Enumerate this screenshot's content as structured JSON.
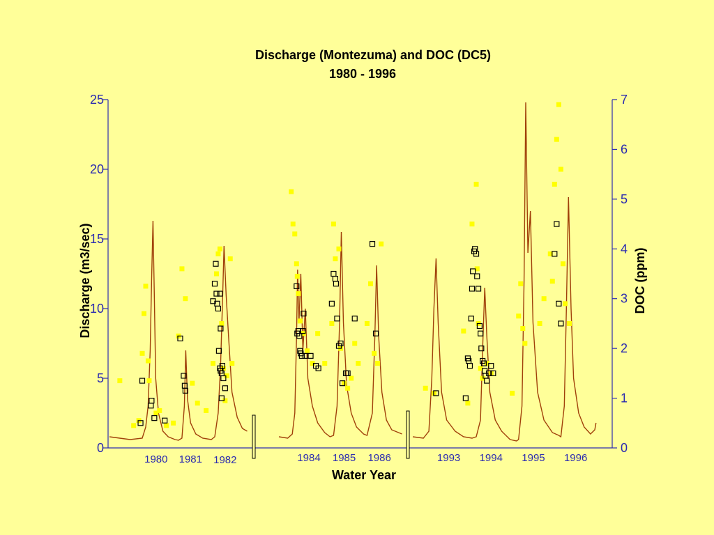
{
  "colors": {
    "background": "#ffff99",
    "axis": "#2b2bb0",
    "discharge_line": "#a0400a",
    "doc_marker_fill": "#ffff00",
    "doc_marker_box": "#000000"
  },
  "chart_data": {
    "type": "line",
    "title": "Discharge (Montezuma) and DOC (DC5)",
    "subtitle": "1980 - 1996",
    "xlabel": "Water Year",
    "ylabel": "Discharge (m3/sec)",
    "y2label": "DOC (ppm)",
    "ylim": [
      0,
      25
    ],
    "y2lim": [
      0,
      7
    ],
    "yticks": [
      "0",
      "5",
      "10",
      "15",
      "20",
      "25"
    ],
    "y2ticks": [
      "0",
      "1",
      "2",
      "3",
      "4",
      "5",
      "6",
      "7"
    ],
    "grid": false,
    "legend": "none",
    "axis_breaks": [
      "after 1982",
      "after 1986"
    ],
    "years": [
      {
        "label": "1980",
        "peak": 16.3
      },
      {
        "label": "1981",
        "peak": 7.0
      },
      {
        "label": "1982",
        "peak": 14.5
      },
      {
        "label": "1984",
        "peak": 12.8
      },
      {
        "label": "1985",
        "peak": 15.5
      },
      {
        "label": "1986",
        "peak": 13.1
      },
      {
        "label": "1993",
        "peak": 13.6
      },
      {
        "label": "1994",
        "peak": 11.5
      },
      {
        "label": "1995",
        "peak": 24.8
      },
      {
        "label": "1996",
        "peak": 18.0
      }
    ],
    "series": [
      {
        "name": "",
        "kind": "discharge line (m3/sec)",
        "points": [
          [
            1979.0,
            0.8
          ],
          [
            1979.3,
            0.7
          ],
          [
            1979.6,
            0.6
          ],
          [
            1979.95,
            0.7
          ],
          [
            1980.05,
            1.5
          ],
          [
            1980.12,
            3
          ],
          [
            1980.18,
            7
          ],
          [
            1980.22,
            12
          ],
          [
            1980.26,
            16.3
          ],
          [
            1980.3,
            11
          ],
          [
            1980.34,
            5
          ],
          [
            1980.42,
            2.5
          ],
          [
            1980.55,
            1.2
          ],
          [
            1980.7,
            0.8
          ],
          [
            1980.9,
            0.6
          ],
          [
            1981.0,
            0.55
          ],
          [
            1981.1,
            0.7
          ],
          [
            1981.17,
            3
          ],
          [
            1981.21,
            7.0
          ],
          [
            1981.26,
            3.5
          ],
          [
            1981.35,
            1.8
          ],
          [
            1981.5,
            1.0
          ],
          [
            1981.7,
            0.7
          ],
          [
            1981.95,
            0.6
          ],
          [
            1982.05,
            0.8
          ],
          [
            1982.15,
            2.5
          ],
          [
            1982.22,
            6
          ],
          [
            1982.28,
            11
          ],
          [
            1982.32,
            14.5
          ],
          [
            1982.38,
            11
          ],
          [
            1982.45,
            8
          ],
          [
            1982.55,
            4
          ],
          [
            1982.7,
            2.2
          ],
          [
            1982.85,
            1.4
          ],
          [
            1982.99,
            1.2
          ],
          [
            1983.5,
            0.8
          ],
          [
            1983.75,
            0.7
          ],
          [
            1983.88,
            1.0
          ],
          [
            1983.95,
            2.5
          ],
          [
            1984.0,
            8
          ],
          [
            1984.03,
            12.8
          ],
          [
            1984.07,
            9
          ],
          [
            1984.12,
            12.5
          ],
          [
            1984.18,
            7
          ],
          [
            1984.25,
            10
          ],
          [
            1984.32,
            5
          ],
          [
            1984.45,
            3
          ],
          [
            1984.6,
            1.8
          ],
          [
            1984.8,
            1.1
          ],
          [
            1984.95,
            0.8
          ],
          [
            1985.05,
            0.9
          ],
          [
            1985.15,
            3
          ],
          [
            1985.22,
            9
          ],
          [
            1985.27,
            15.5
          ],
          [
            1985.33,
            9
          ],
          [
            1985.42,
            4.5
          ],
          [
            1985.55,
            2.5
          ],
          [
            1985.7,
            1.5
          ],
          [
            1985.9,
            1.0
          ],
          [
            1986.0,
            0.9
          ],
          [
            1986.15,
            2.5
          ],
          [
            1986.22,
            8
          ],
          [
            1986.27,
            13.1
          ],
          [
            1986.33,
            8
          ],
          [
            1986.42,
            4
          ],
          [
            1986.55,
            2
          ],
          [
            1986.7,
            1.3
          ],
          [
            1986.99,
            1.0
          ],
          [
            1992.5,
            0.8
          ],
          [
            1992.75,
            0.7
          ],
          [
            1992.88,
            1.2
          ],
          [
            1992.95,
            5
          ],
          [
            1993.0,
            10
          ],
          [
            1993.05,
            13.6
          ],
          [
            1993.1,
            9
          ],
          [
            1993.18,
            4
          ],
          [
            1993.3,
            2
          ],
          [
            1993.5,
            1.2
          ],
          [
            1993.7,
            0.8
          ],
          [
            1993.9,
            0.7
          ],
          [
            1994.0,
            0.8
          ],
          [
            1994.1,
            2
          ],
          [
            1994.15,
            7
          ],
          [
            1994.2,
            11.5
          ],
          [
            1994.25,
            8
          ],
          [
            1994.32,
            4
          ],
          [
            1994.45,
            2
          ],
          [
            1994.6,
            1.2
          ],
          [
            1994.8,
            0.6
          ],
          [
            1994.95,
            0.5
          ],
          [
            1995.0,
            0.6
          ],
          [
            1995.08,
            3
          ],
          [
            1995.13,
            12
          ],
          [
            1995.17,
            24.8
          ],
          [
            1995.22,
            14
          ],
          [
            1995.28,
            17
          ],
          [
            1995.34,
            9
          ],
          [
            1995.45,
            4
          ],
          [
            1995.6,
            2
          ],
          [
            1995.8,
            1.1
          ],
          [
            1995.95,
            0.9
          ],
          [
            1996.0,
            0.8
          ],
          [
            1996.08,
            3
          ],
          [
            1996.13,
            10
          ],
          [
            1996.18,
            18.0
          ],
          [
            1996.24,
            10
          ],
          [
            1996.3,
            5
          ],
          [
            1996.42,
            2.5
          ],
          [
            1996.55,
            1.5
          ],
          [
            1996.7,
            1.0
          ],
          [
            1996.8,
            1.3
          ],
          [
            1996.83,
            1.8
          ]
        ]
      },
      {
        "name": "",
        "kind": "DOC yellow markers (ppm)",
        "points": [
          [
            1979.3,
            1.35
          ],
          [
            1979.7,
            0.45
          ],
          [
            1979.85,
            0.55
          ],
          [
            1979.95,
            1.9
          ],
          [
            1980.0,
            2.7
          ],
          [
            1980.05,
            3.25
          ],
          [
            1980.12,
            1.75
          ],
          [
            1980.15,
            1.35
          ],
          [
            1980.35,
            0.7
          ],
          [
            1980.45,
            0.75
          ],
          [
            1980.65,
            0.45
          ],
          [
            1980.85,
            0.5
          ],
          [
            1981.0,
            2.25
          ],
          [
            1981.1,
            3.6
          ],
          [
            1981.2,
            3.0
          ],
          [
            1981.4,
            1.3
          ],
          [
            1981.55,
            0.9
          ],
          [
            1981.8,
            0.75
          ],
          [
            1982.0,
            1.7
          ],
          [
            1982.1,
            3.5
          ],
          [
            1982.15,
            3.9
          ],
          [
            1982.2,
            4.0
          ],
          [
            1982.25,
            2.5
          ],
          [
            1982.3,
            1.6
          ],
          [
            1982.35,
            0.95
          ],
          [
            1982.4,
            1.45
          ],
          [
            1982.5,
            3.8
          ],
          [
            1982.55,
            1.7
          ],
          [
            1983.85,
            5.15
          ],
          [
            1983.9,
            4.5
          ],
          [
            1983.95,
            4.3
          ],
          [
            1984.0,
            3.7
          ],
          [
            1984.02,
            3.45
          ],
          [
            1984.05,
            3.1
          ],
          [
            1984.1,
            2.55
          ],
          [
            1984.2,
            2.3
          ],
          [
            1984.3,
            1.95
          ],
          [
            1984.45,
            1.7
          ],
          [
            1984.6,
            2.3
          ],
          [
            1984.8,
            1.7
          ],
          [
            1985.0,
            2.5
          ],
          [
            1985.05,
            4.5
          ],
          [
            1985.1,
            3.8
          ],
          [
            1985.2,
            4.0
          ],
          [
            1985.25,
            2.0
          ],
          [
            1985.35,
            1.3
          ],
          [
            1985.45,
            1.2
          ],
          [
            1985.55,
            1.4
          ],
          [
            1985.65,
            2.1
          ],
          [
            1985.75,
            1.7
          ],
          [
            1986.0,
            2.5
          ],
          [
            1986.1,
            3.3
          ],
          [
            1986.2,
            1.9
          ],
          [
            1986.3,
            1.7
          ],
          [
            1986.4,
            4.1
          ],
          [
            1992.8,
            1.2
          ],
          [
            1993.0,
            1.1
          ],
          [
            1993.7,
            2.35
          ],
          [
            1993.8,
            0.9
          ],
          [
            1993.9,
            4.5
          ],
          [
            1994.0,
            5.3
          ],
          [
            1994.02,
            3.6
          ],
          [
            1994.05,
            2.5
          ],
          [
            1994.1,
            1.6
          ],
          [
            1994.15,
            1.4
          ],
          [
            1994.25,
            1.7
          ],
          [
            1994.35,
            1.5
          ],
          [
            1994.85,
            1.1
          ],
          [
            1995.0,
            2.65
          ],
          [
            1995.05,
            3.3
          ],
          [
            1995.1,
            2.4
          ],
          [
            1995.15,
            2.1
          ],
          [
            1995.5,
            2.5
          ],
          [
            1995.6,
            3.0
          ],
          [
            1995.75,
            3.9
          ],
          [
            1995.8,
            3.35
          ],
          [
            1995.85,
            5.3
          ],
          [
            1995.9,
            6.2
          ],
          [
            1995.95,
            6.9
          ],
          [
            1996.0,
            5.6
          ],
          [
            1996.05,
            3.7
          ],
          [
            1996.1,
            2.9
          ],
          [
            1996.2,
            2.5
          ]
        ]
      },
      {
        "name": "",
        "kind": "DOC boxed markers (ppm)",
        "points": [
          [
            1979.9,
            0.5
          ],
          [
            1979.95,
            1.35
          ],
          [
            1980.2,
            0.85
          ],
          [
            1980.22,
            0.95
          ],
          [
            1980.3,
            0.6
          ],
          [
            1980.6,
            0.55
          ],
          [
            1981.05,
            2.2
          ],
          [
            1981.15,
            1.45
          ],
          [
            1981.18,
            1.25
          ],
          [
            1981.2,
            1.15
          ],
          [
            1982.0,
            2.95
          ],
          [
            1982.05,
            3.3
          ],
          [
            1982.08,
            3.7
          ],
          [
            1982.1,
            3.1
          ],
          [
            1982.12,
            2.9
          ],
          [
            1982.15,
            2.8
          ],
          [
            1982.17,
            1.95
          ],
          [
            1982.2,
            1.6
          ],
          [
            1982.22,
            1.55
          ],
          [
            1982.25,
            1.5
          ],
          [
            1982.27,
            1.65
          ],
          [
            1982.3,
            1.4
          ],
          [
            1982.35,
            1.2
          ],
          [
            1982.2,
            3.1
          ],
          [
            1982.22,
            2.4
          ],
          [
            1982.25,
            1.0
          ],
          [
            1984.0,
            3.25
          ],
          [
            1984.02,
            2.3
          ],
          [
            1984.05,
            2.35
          ],
          [
            1984.08,
            2.25
          ],
          [
            1984.1,
            1.95
          ],
          [
            1984.12,
            1.9
          ],
          [
            1984.15,
            1.85
          ],
          [
            1984.18,
            2.35
          ],
          [
            1984.2,
            2.7
          ],
          [
            1984.25,
            1.85
          ],
          [
            1984.4,
            1.85
          ],
          [
            1984.55,
            1.65
          ],
          [
            1984.62,
            1.6
          ],
          [
            1985.0,
            2.9
          ],
          [
            1985.05,
            3.5
          ],
          [
            1985.1,
            3.4
          ],
          [
            1985.12,
            3.3
          ],
          [
            1985.15,
            2.6
          ],
          [
            1985.2,
            2.05
          ],
          [
            1985.25,
            2.1
          ],
          [
            1985.3,
            1.3
          ],
          [
            1985.4,
            1.5
          ],
          [
            1985.45,
            1.5
          ],
          [
            1985.65,
            2.6
          ],
          [
            1986.15,
            4.1
          ],
          [
            1986.25,
            2.3
          ],
          [
            1993.05,
            1.1
          ],
          [
            1993.75,
            1.0
          ],
          [
            1993.8,
            1.8
          ],
          [
            1993.82,
            1.75
          ],
          [
            1993.85,
            1.65
          ],
          [
            1993.88,
            2.6
          ],
          [
            1993.9,
            3.2
          ],
          [
            1993.92,
            3.55
          ],
          [
            1993.95,
            3.95
          ],
          [
            1993.97,
            4.0
          ],
          [
            1994.0,
            3.9
          ],
          [
            1994.02,
            3.45
          ],
          [
            1994.05,
            3.2
          ],
          [
            1994.08,
            2.45
          ],
          [
            1994.1,
            2.3
          ],
          [
            1994.12,
            2.0
          ],
          [
            1994.15,
            1.75
          ],
          [
            1994.18,
            1.7
          ],
          [
            1994.2,
            1.55
          ],
          [
            1994.22,
            1.45
          ],
          [
            1994.25,
            1.35
          ],
          [
            1994.3,
            1.5
          ],
          [
            1994.35,
            1.65
          ],
          [
            1994.4,
            1.5
          ],
          [
            1995.85,
            3.9
          ],
          [
            1995.9,
            4.5
          ],
          [
            1995.95,
            2.9
          ],
          [
            1996.0,
            2.5
          ]
        ]
      }
    ]
  }
}
